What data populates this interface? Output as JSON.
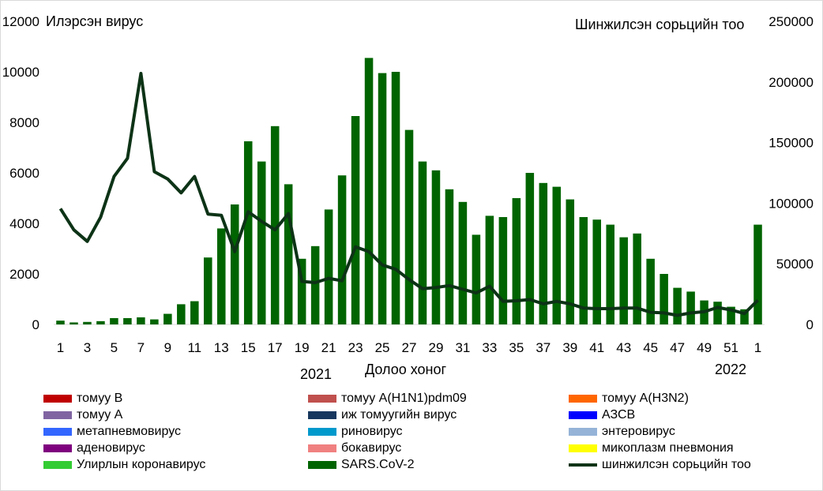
{
  "chart_data": {
    "type": "bar",
    "left_axis_title": "Илэрсэн вирус",
    "right_axis_title": "Шинжилсэн сорьцийн тоо",
    "xlabel": "Долоо хоног",
    "year_labels": [
      "2021",
      "2022"
    ],
    "left_ylim": [
      0,
      12000
    ],
    "left_yticks": [
      "0",
      "2000",
      "4000",
      "6000",
      "8000",
      "10000",
      "12000"
    ],
    "right_ylim": [
      0,
      250000
    ],
    "right_yticks": [
      "0",
      "50000",
      "100000",
      "150000",
      "200000",
      "250000"
    ],
    "x_tick_labels": [
      "1",
      "3",
      "5",
      "7",
      "9",
      "11",
      "13",
      "15",
      "17",
      "19",
      "21",
      "23",
      "25",
      "27",
      "29",
      "31",
      "33",
      "35",
      "37",
      "39",
      "41",
      "43",
      "45",
      "47",
      "49",
      "51",
      "1"
    ],
    "weeks": [
      "1",
      "2",
      "3",
      "4",
      "5",
      "6",
      "7",
      "8",
      "9",
      "10",
      "11",
      "12",
      "13",
      "14",
      "15",
      "16",
      "17",
      "18",
      "19",
      "20",
      "21",
      "22",
      "23",
      "24",
      "25",
      "26",
      "27",
      "28",
      "29",
      "30",
      "31",
      "32",
      "33",
      "34",
      "35",
      "36",
      "37",
      "38",
      "39",
      "40",
      "41",
      "42",
      "43",
      "44",
      "45",
      "46",
      "47",
      "48",
      "49",
      "50",
      "51",
      "52",
      "1"
    ],
    "bar_series": {
      "name": "SARS.CoV-2",
      "color": "#006400",
      "axis": "left",
      "values": [
        150,
        80,
        100,
        130,
        250,
        250,
        280,
        200,
        420,
        800,
        920,
        2650,
        3800,
        4750,
        7250,
        6450,
        7850,
        5550,
        2600,
        3100,
        4550,
        5900,
        8250,
        10550,
        9950,
        10000,
        7700,
        6450,
        6100,
        5350,
        4850,
        3550,
        4300,
        4250,
        5000,
        6000,
        5600,
        5450,
        4950,
        4250,
        4150,
        3950,
        3450,
        3600,
        2600,
        2000,
        1450,
        1300,
        950,
        900,
        700,
        600,
        3950
      ]
    },
    "line_series": {
      "name": "шинжилсэн сорьцийн тоо",
      "color": "#0d3316",
      "axis": "right",
      "values": [
        95500,
        78000,
        68500,
        88500,
        122000,
        137000,
        207000,
        126000,
        120000,
        108500,
        122000,
        91000,
        90000,
        60000,
        93000,
        85000,
        78000,
        91500,
        35500,
        34500,
        38000,
        36000,
        64000,
        60000,
        49000,
        45500,
        37000,
        29500,
        30500,
        32000,
        29000,
        26000,
        31500,
        19000,
        19500,
        20500,
        17000,
        19000,
        17000,
        13500,
        13000,
        13000,
        13500,
        13500,
        10000,
        9500,
        7500,
        9500,
        10500,
        14000,
        12000,
        9000,
        20000
      ]
    },
    "legend": [
      {
        "label": "томуу B",
        "color": "#c00000"
      },
      {
        "label": "томуу A(H1N1)pdm09",
        "color": "#c0504d"
      },
      {
        "label": "томуу A(H3N2)",
        "color": "#ff6600"
      },
      {
        "label": "томуу A",
        "color": "#8064a2"
      },
      {
        "label": "иж томуугийн вирус",
        "color": "#17375e"
      },
      {
        "label": "АЗСВ",
        "color": "#0000ff"
      },
      {
        "label": "метапневмовирус",
        "color": "#3366ff"
      },
      {
        "label": "риновирус",
        "color": "#0099cc"
      },
      {
        "label": "энтеровирус",
        "color": "#95b3d7"
      },
      {
        "label": "аденовирус",
        "color": "#7f007f"
      },
      {
        "label": "бокавирус",
        "color": "#f08080"
      },
      {
        "label": "микоплазм пневмония",
        "color": "#ffff00"
      },
      {
        "label": "Улирлын коронавирус",
        "color": "#33cc33"
      },
      {
        "label": "SARS.CoV-2",
        "color": "#006400"
      },
      {
        "label": "шинжилсэн сорьцийн тоо",
        "color": "#0d3316",
        "kind": "line"
      }
    ]
  }
}
